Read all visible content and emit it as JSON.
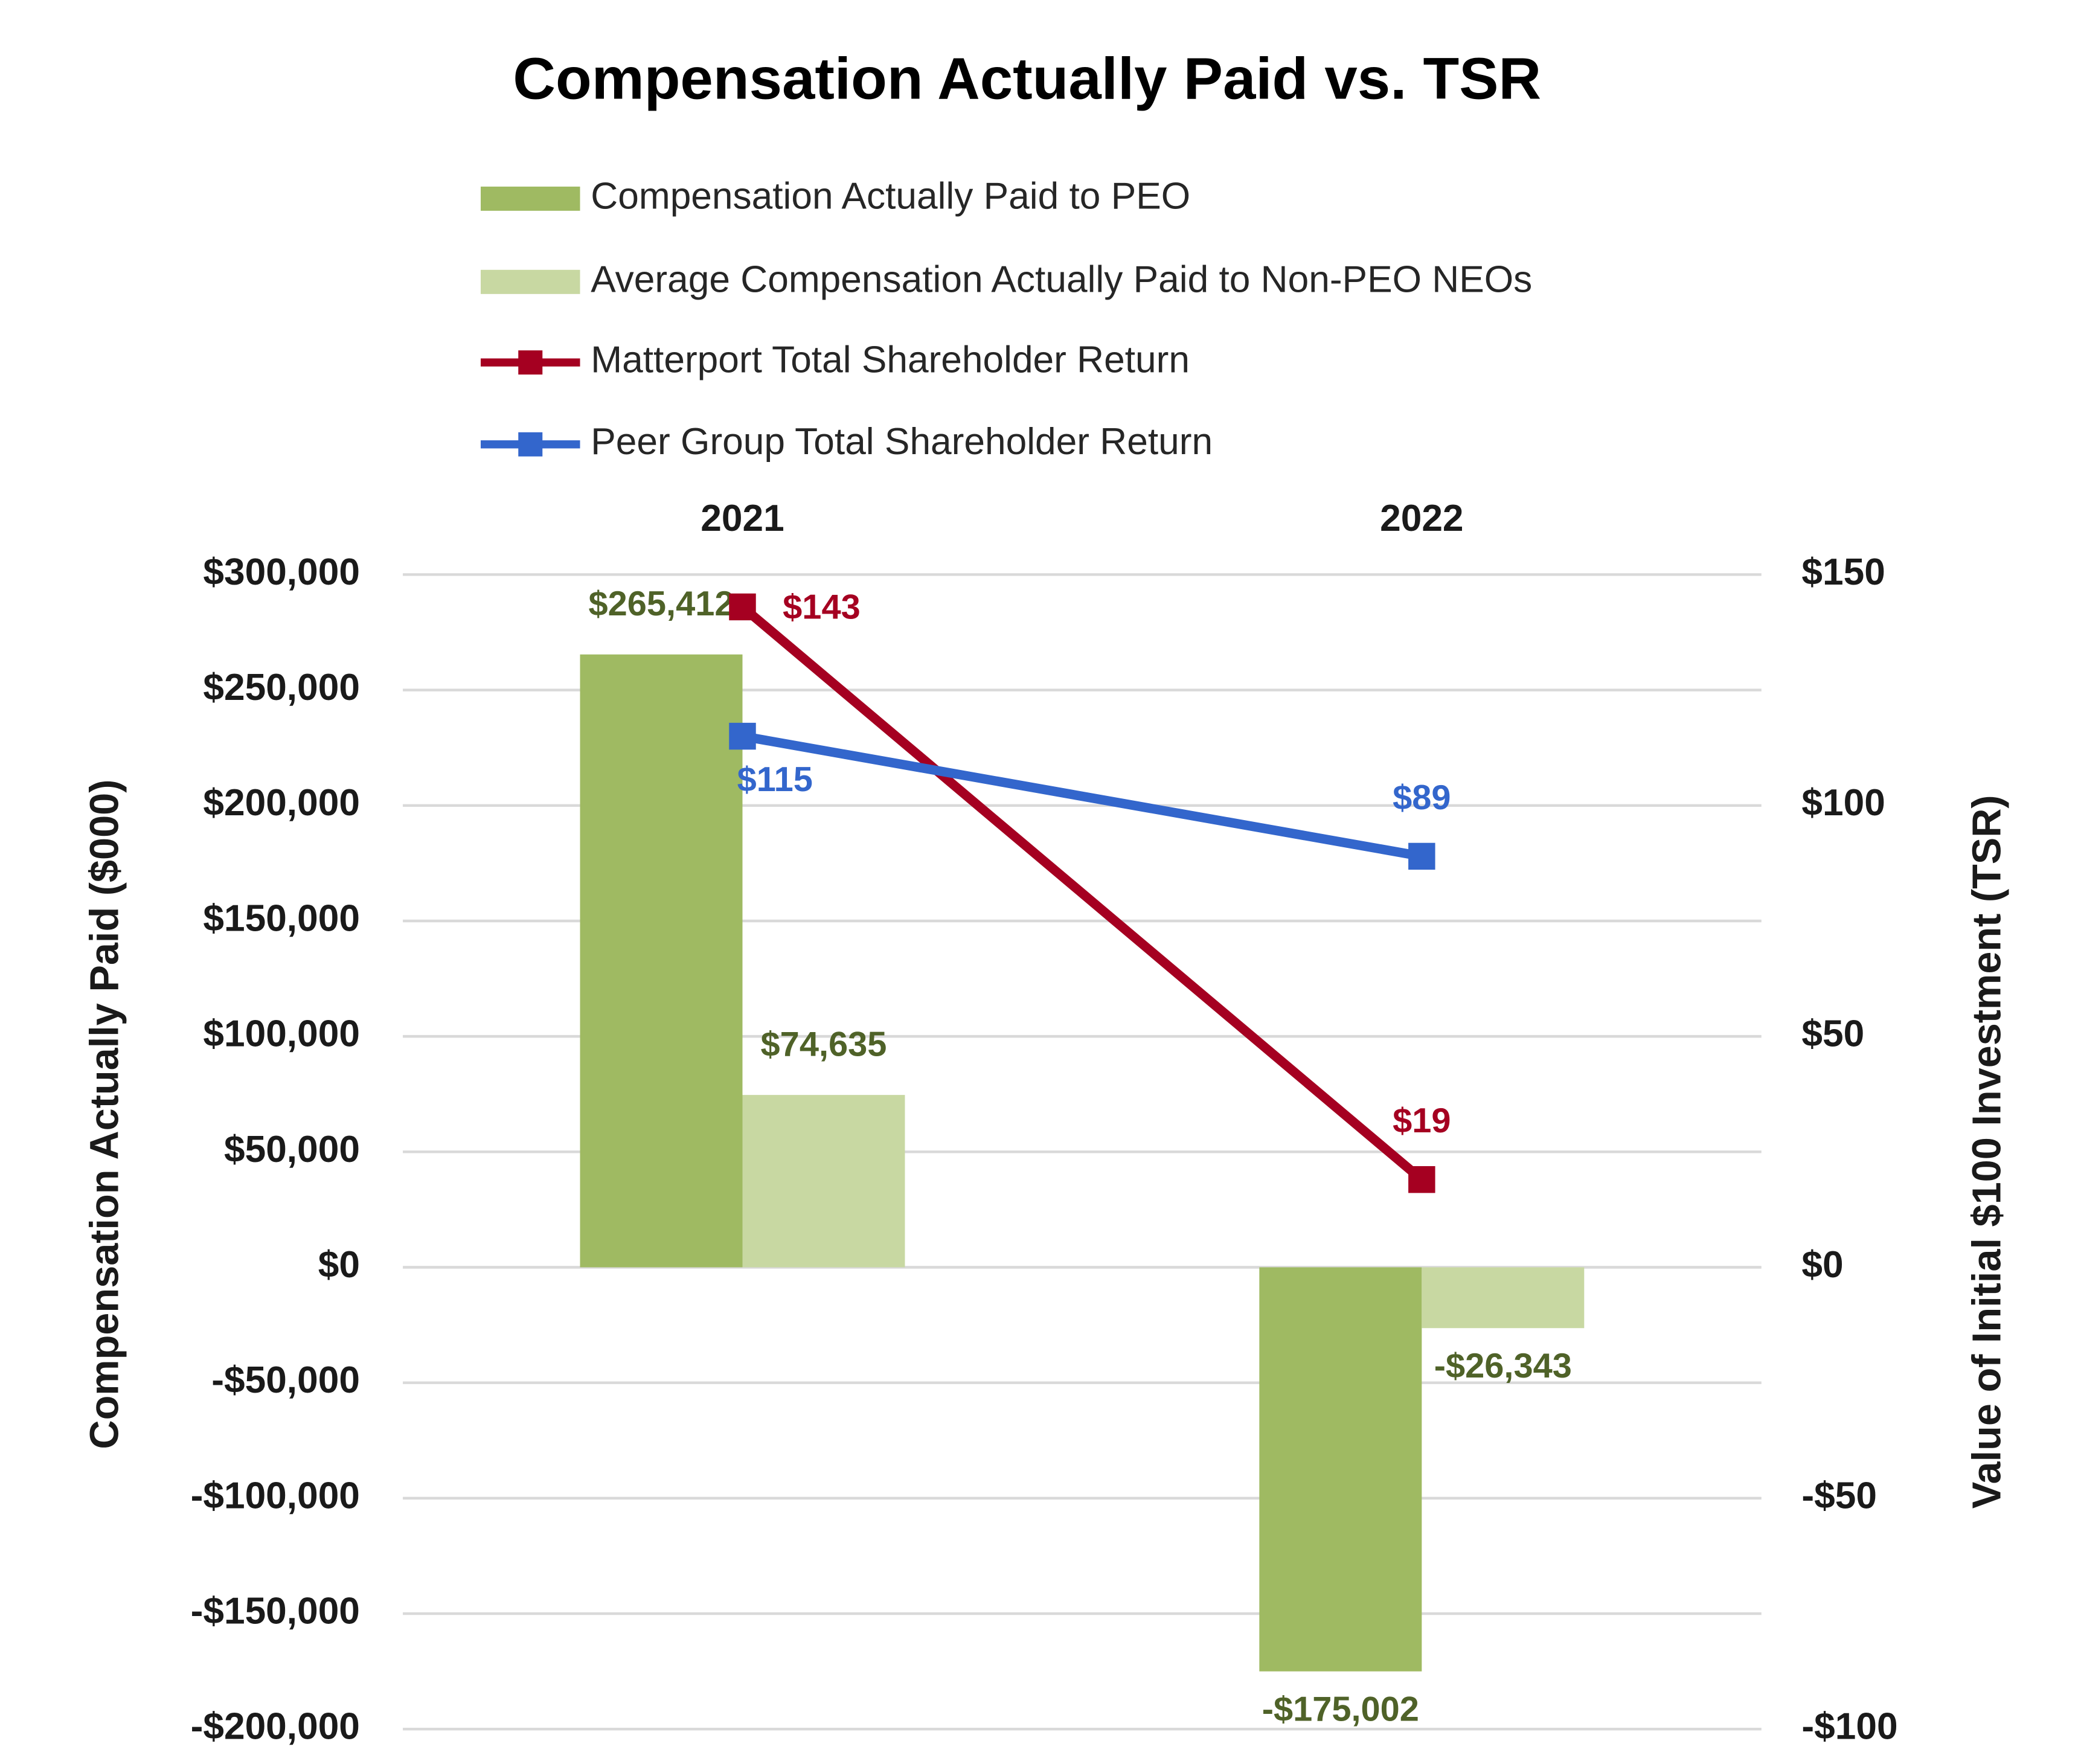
{
  "chart_data": {
    "type": "bar",
    "title": "Compensation Actually Paid vs. TSR",
    "y_label": "Compensation Actually Paid ($000)",
    "y2_label": "Value of Initial $100 Investment (TSR)",
    "categories": [
      "2021",
      "2022"
    ],
    "series": [
      {
        "name": "Compensation Actually Paid to PEO",
        "color": "#9fba62",
        "values": [
          265412,
          -175002
        ],
        "value_labels": [
          "$265,412",
          "-$175,002"
        ]
      },
      {
        "name": "Average Compensation Actually Paid to Non-PEO NEOs",
        "color": "#c8d8a2",
        "values": [
          74635,
          -26343
        ],
        "value_labels": [
          "$74,635",
          "-$26,343"
        ]
      },
      {
        "name": "Matterport Total Shareholder Return",
        "type": "line",
        "axis": "y2",
        "color": "#a50021",
        "values": [
          143,
          19
        ],
        "value_labels": [
          "$143",
          "$19"
        ]
      },
      {
        "name": "Peer Group Total Shareholder Return",
        "type": "line",
        "axis": "y2",
        "color": "#3366cc",
        "values": [
          115,
          89
        ],
        "value_labels": [
          "$115",
          "$89"
        ]
      }
    ],
    "ylim": [
      -200000,
      300000
    ],
    "yticks": [
      {
        "value": -200000,
        "label": "-$200,000"
      },
      {
        "value": -150000,
        "label": "-$150,000"
      },
      {
        "value": -100000,
        "label": "-$100,000"
      },
      {
        "value": -50000,
        "label": "-$50,000"
      },
      {
        "value": 0,
        "label": "$0"
      },
      {
        "value": 50000,
        "label": "$50,000"
      },
      {
        "value": 100000,
        "label": "$100,000"
      },
      {
        "value": 150000,
        "label": "$150,000"
      },
      {
        "value": 200000,
        "label": "$200,000"
      },
      {
        "value": 250000,
        "label": "$250,000"
      },
      {
        "value": 300000,
        "label": "$300,000"
      }
    ],
    "y2lim": [
      -100,
      150
    ],
    "y2ticks": [
      {
        "value": -100,
        "label": "-$100"
      },
      {
        "value": -50,
        "label": "-$50"
      },
      {
        "value": 0,
        "label": "$0"
      },
      {
        "value": 50,
        "label": "$50"
      },
      {
        "value": 100,
        "label": "$100"
      },
      {
        "value": 150,
        "label": "$150"
      }
    ],
    "grid": true,
    "legend": "top"
  }
}
